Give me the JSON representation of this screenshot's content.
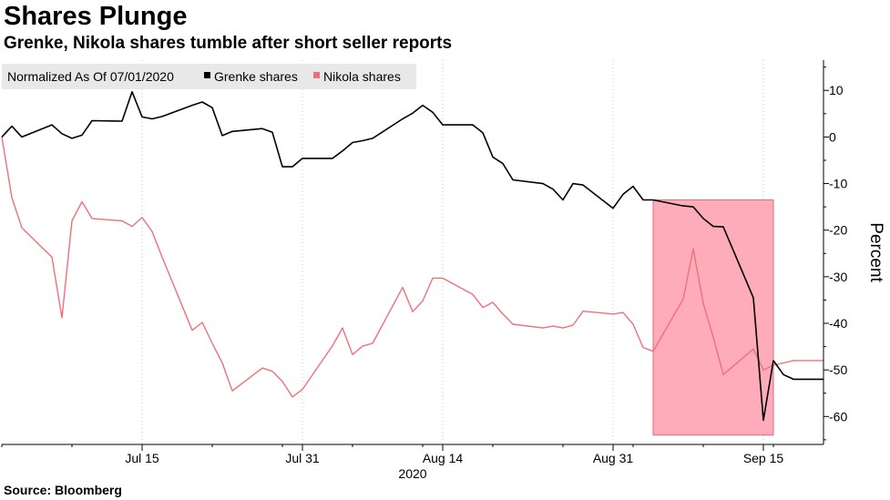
{
  "title": "Shares Plunge",
  "subtitle": "Grenke, Nikola shares tumble after short seller reports",
  "source": "Source: Bloomberg",
  "chart_data": {
    "type": "line",
    "legend_note": "Normalized As Of 07/01/2020",
    "ylabel": "Percent",
    "xlabel": "2020",
    "ylim": [
      -66,
      16.5
    ],
    "yticks": [
      10,
      0,
      -10,
      -20,
      -30,
      -40,
      -50,
      -60
    ],
    "xrange": [
      "2020-07-01",
      "2020-09-21"
    ],
    "xticks": [
      {
        "label": "Jul 15",
        "date": "2020-07-15"
      },
      {
        "label": "Jul 31",
        "date": "2020-07-31"
      },
      {
        "label": "Aug 14",
        "date": "2020-08-14"
      },
      {
        "label": "Aug 31",
        "date": "2020-08-31"
      },
      {
        "label": "Sep 15",
        "date": "2020-09-15"
      }
    ],
    "grid": "vertical dotted",
    "legend_position": "top-left",
    "highlight": {
      "x_start": "2020-09-04",
      "x_end": "2020-09-16",
      "y_top": -13.5,
      "y_bottom": -64,
      "color": "#ffa8b6"
    },
    "series": [
      {
        "name": "Grenke shares",
        "color": "#000000",
        "x": [
          "2020-07-01",
          "2020-07-02",
          "2020-07-03",
          "2020-07-06",
          "2020-07-07",
          "2020-07-08",
          "2020-07-09",
          "2020-07-10",
          "2020-07-13",
          "2020-07-14",
          "2020-07-15",
          "2020-07-16",
          "2020-07-17",
          "2020-07-20",
          "2020-07-21",
          "2020-07-22",
          "2020-07-23",
          "2020-07-24",
          "2020-07-27",
          "2020-07-28",
          "2020-07-29",
          "2020-07-30",
          "2020-07-31",
          "2020-08-03",
          "2020-08-04",
          "2020-08-05",
          "2020-08-06",
          "2020-08-07",
          "2020-08-10",
          "2020-08-11",
          "2020-08-12",
          "2020-08-13",
          "2020-08-14",
          "2020-08-17",
          "2020-08-18",
          "2020-08-19",
          "2020-08-20",
          "2020-08-21",
          "2020-08-24",
          "2020-08-25",
          "2020-08-26",
          "2020-08-27",
          "2020-08-28",
          "2020-08-31",
          "2020-09-01",
          "2020-09-02",
          "2020-09-03",
          "2020-09-04",
          "2020-09-07",
          "2020-09-08",
          "2020-09-09",
          "2020-09-10",
          "2020-09-11",
          "2020-09-14",
          "2020-09-15",
          "2020-09-16",
          "2020-09-17",
          "2020-09-18",
          "2020-09-21"
        ],
        "values": [
          0,
          2.3,
          0,
          2.6,
          0.7,
          -0.3,
          0.4,
          3.5,
          3.4,
          9.7,
          4.3,
          3.9,
          4.4,
          6.8,
          7.5,
          6.3,
          0.3,
          1.2,
          1.8,
          1.0,
          -6.4,
          -6.4,
          -4.6,
          -4.6,
          -3.0,
          -1.2,
          -0.8,
          -0.3,
          3.9,
          5.1,
          6.8,
          5.3,
          2.6,
          2.6,
          0.9,
          -4.3,
          -5.7,
          -9.2,
          -10.0,
          -11.2,
          -13.5,
          -10.0,
          -10.3,
          -15.3,
          -12.3,
          -10.6,
          -13.5,
          -13.5,
          -14.8,
          -15.0,
          -17.5,
          -19.2,
          -19.3,
          -34.5,
          -60.8,
          -48.0,
          -51.0,
          -52.0,
          -52.0
        ]
      },
      {
        "name": "Nikola shares",
        "color": "#f0707a",
        "x": [
          "2020-07-01",
          "2020-07-02",
          "2020-07-03",
          "2020-07-06",
          "2020-07-07",
          "2020-07-08",
          "2020-07-09",
          "2020-07-10",
          "2020-07-13",
          "2020-07-14",
          "2020-07-15",
          "2020-07-16",
          "2020-07-17",
          "2020-07-20",
          "2020-07-21",
          "2020-07-22",
          "2020-07-23",
          "2020-07-24",
          "2020-07-27",
          "2020-07-28",
          "2020-07-29",
          "2020-07-30",
          "2020-07-31",
          "2020-08-03",
          "2020-08-04",
          "2020-08-05",
          "2020-08-06",
          "2020-08-07",
          "2020-08-10",
          "2020-08-11",
          "2020-08-12",
          "2020-08-13",
          "2020-08-14",
          "2020-08-17",
          "2020-08-18",
          "2020-08-19",
          "2020-08-20",
          "2020-08-21",
          "2020-08-24",
          "2020-08-25",
          "2020-08-26",
          "2020-08-27",
          "2020-08-28",
          "2020-08-31",
          "2020-09-01",
          "2020-09-02",
          "2020-09-03",
          "2020-09-04",
          "2020-09-07",
          "2020-09-08",
          "2020-09-09",
          "2020-09-10",
          "2020-09-11",
          "2020-09-14",
          "2020-09-15",
          "2020-09-16",
          "2020-09-17",
          "2020-09-18",
          "2020-09-21"
        ],
        "values": [
          0,
          -13.0,
          -19.5,
          -25.8,
          -38.8,
          -18.0,
          -13.9,
          -17.5,
          -18.0,
          -19.2,
          -17.3,
          -20.3,
          -25.8,
          -41.5,
          -39.8,
          -44.3,
          -48.5,
          -54.5,
          -49.6,
          -50.3,
          -52.5,
          -55.8,
          -54.2,
          -44.8,
          -41.0,
          -46.7,
          -44.9,
          -44.3,
          -32.3,
          -37.5,
          -35.2,
          -30.3,
          -30.3,
          -33.8,
          -36.6,
          -35.5,
          -38.0,
          -40.2,
          -41.0,
          -40.6,
          -41.0,
          -40.4,
          -37.4,
          -38.0,
          -37.7,
          -40.2,
          -45.2,
          -46.0,
          -34.8,
          -24.0,
          -35.7,
          -43.0,
          -51.0,
          -45.5,
          -50.0,
          -49.0,
          -48.5,
          -48.0,
          -48.0
        ]
      }
    ]
  }
}
